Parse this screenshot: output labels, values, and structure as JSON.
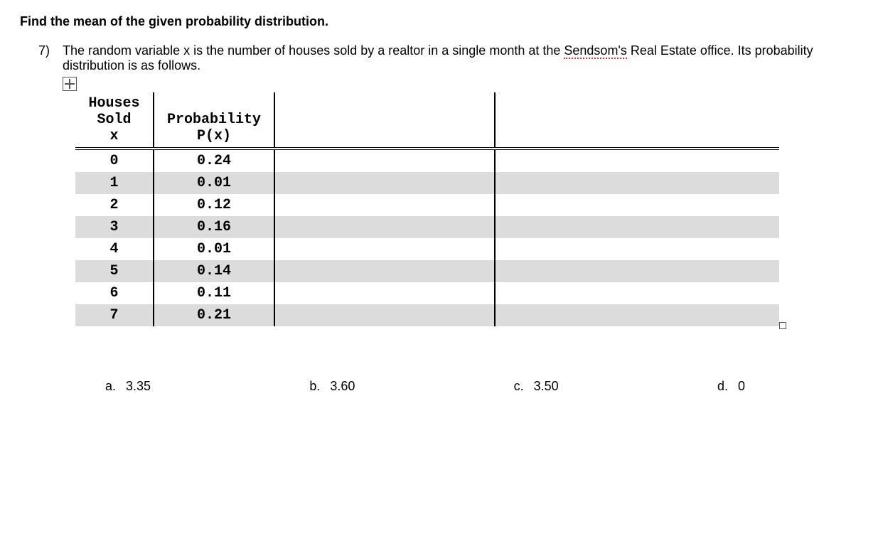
{
  "heading": "Find the mean of the given probability distribution.",
  "question": {
    "number": "7)",
    "text_before_spell": "The random variable x is the number of houses sold by a realtor in a single month at the ",
    "spell_word": "Sendsom's",
    "text_after_spell": " Real Estate office. Its probability distribution is as follows."
  },
  "table": {
    "headers": {
      "col1_line1": "Houses",
      "col1_line2": "Sold",
      "col1_line3": "x",
      "col2_line1": "Probability",
      "col2_line2": "P(x)"
    },
    "rows": [
      {
        "x": "0",
        "p": "0.24",
        "shaded": false
      },
      {
        "x": "1",
        "p": "0.01",
        "shaded": true
      },
      {
        "x": "2",
        "p": "0.12",
        "shaded": false
      },
      {
        "x": "3",
        "p": "0.16",
        "shaded": true
      },
      {
        "x": "4",
        "p": "0.01",
        "shaded": false
      },
      {
        "x": "5",
        "p": "0.14",
        "shaded": true
      },
      {
        "x": "6",
        "p": "0.11",
        "shaded": false
      },
      {
        "x": "7",
        "p": "0.21",
        "shaded": true
      }
    ]
  },
  "options": [
    {
      "letter": "a.",
      "value": "3.35"
    },
    {
      "letter": "b.",
      "value": "3.60"
    },
    {
      "letter": "c.",
      "value": "3.50"
    },
    {
      "letter": "d.",
      "value": "0"
    }
  ],
  "style": {
    "row_shade_color": "#dcdcdc",
    "spellcheck_color": "#e03030",
    "font_body": "Arial, Helvetica, sans-serif",
    "font_mono": "Courier New, monospace"
  }
}
